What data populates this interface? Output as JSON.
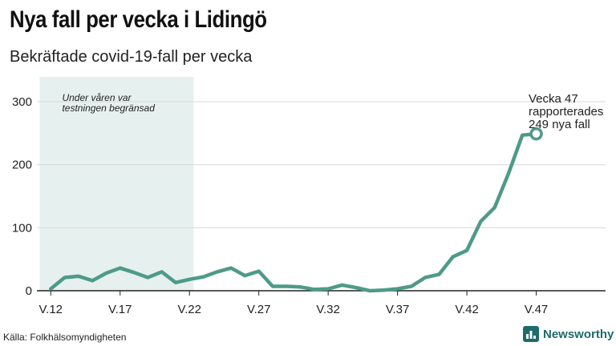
{
  "header": {
    "title": "Nya fall per vecka i Lidingö",
    "subtitle": "Bekräftade covid-19-fall per vecka"
  },
  "footer": {
    "source": "Källa: Folkhälsomyndigheten",
    "brand": "Newsworthy",
    "brand_icon": "bar-chart-logo-icon"
  },
  "colors": {
    "line": "#4e9a89",
    "shade": "#e6f0ef",
    "grid": "#d9d9d9",
    "brand": "#1f6b6b"
  },
  "chart_data": {
    "type": "line",
    "title": "Nya fall per vecka i Lidingö",
    "subtitle": "Bekräftade covid-19-fall per vecka",
    "xlabel": "",
    "ylabel": "",
    "x_start_week": 12,
    "x_range": [
      11,
      52
    ],
    "ylim": [
      0,
      300
    ],
    "y_ticks": [
      0,
      100,
      200,
      300
    ],
    "x_ticks": [
      {
        "week": 12,
        "label": "V.12"
      },
      {
        "week": 17,
        "label": "V.17"
      },
      {
        "week": 22,
        "label": "V.22"
      },
      {
        "week": 27,
        "label": "V.27"
      },
      {
        "week": 32,
        "label": "V.32"
      },
      {
        "week": 37,
        "label": "V.37"
      },
      {
        "week": 42,
        "label": "V.42"
      },
      {
        "week": 47,
        "label": "V.47"
      }
    ],
    "grid": true,
    "series": [
      {
        "values": [
          3,
          21,
          23,
          16,
          28,
          36,
          29,
          21,
          30,
          13,
          18,
          22,
          30,
          36,
          24,
          31,
          7,
          7,
          6,
          2,
          3,
          9,
          5,
          0,
          1,
          3,
          7,
          21,
          26,
          54,
          64,
          110,
          132,
          186,
          247,
          249
        ]
      }
    ],
    "shaded_region": {
      "from_week": 11.2,
      "to_week": 22.3,
      "label": "Under våren var testningen begränsad"
    },
    "annotation": {
      "week": 47,
      "value": 249,
      "text": [
        "Vecka 47",
        "rapporterades",
        "249 nya fall"
      ]
    }
  }
}
